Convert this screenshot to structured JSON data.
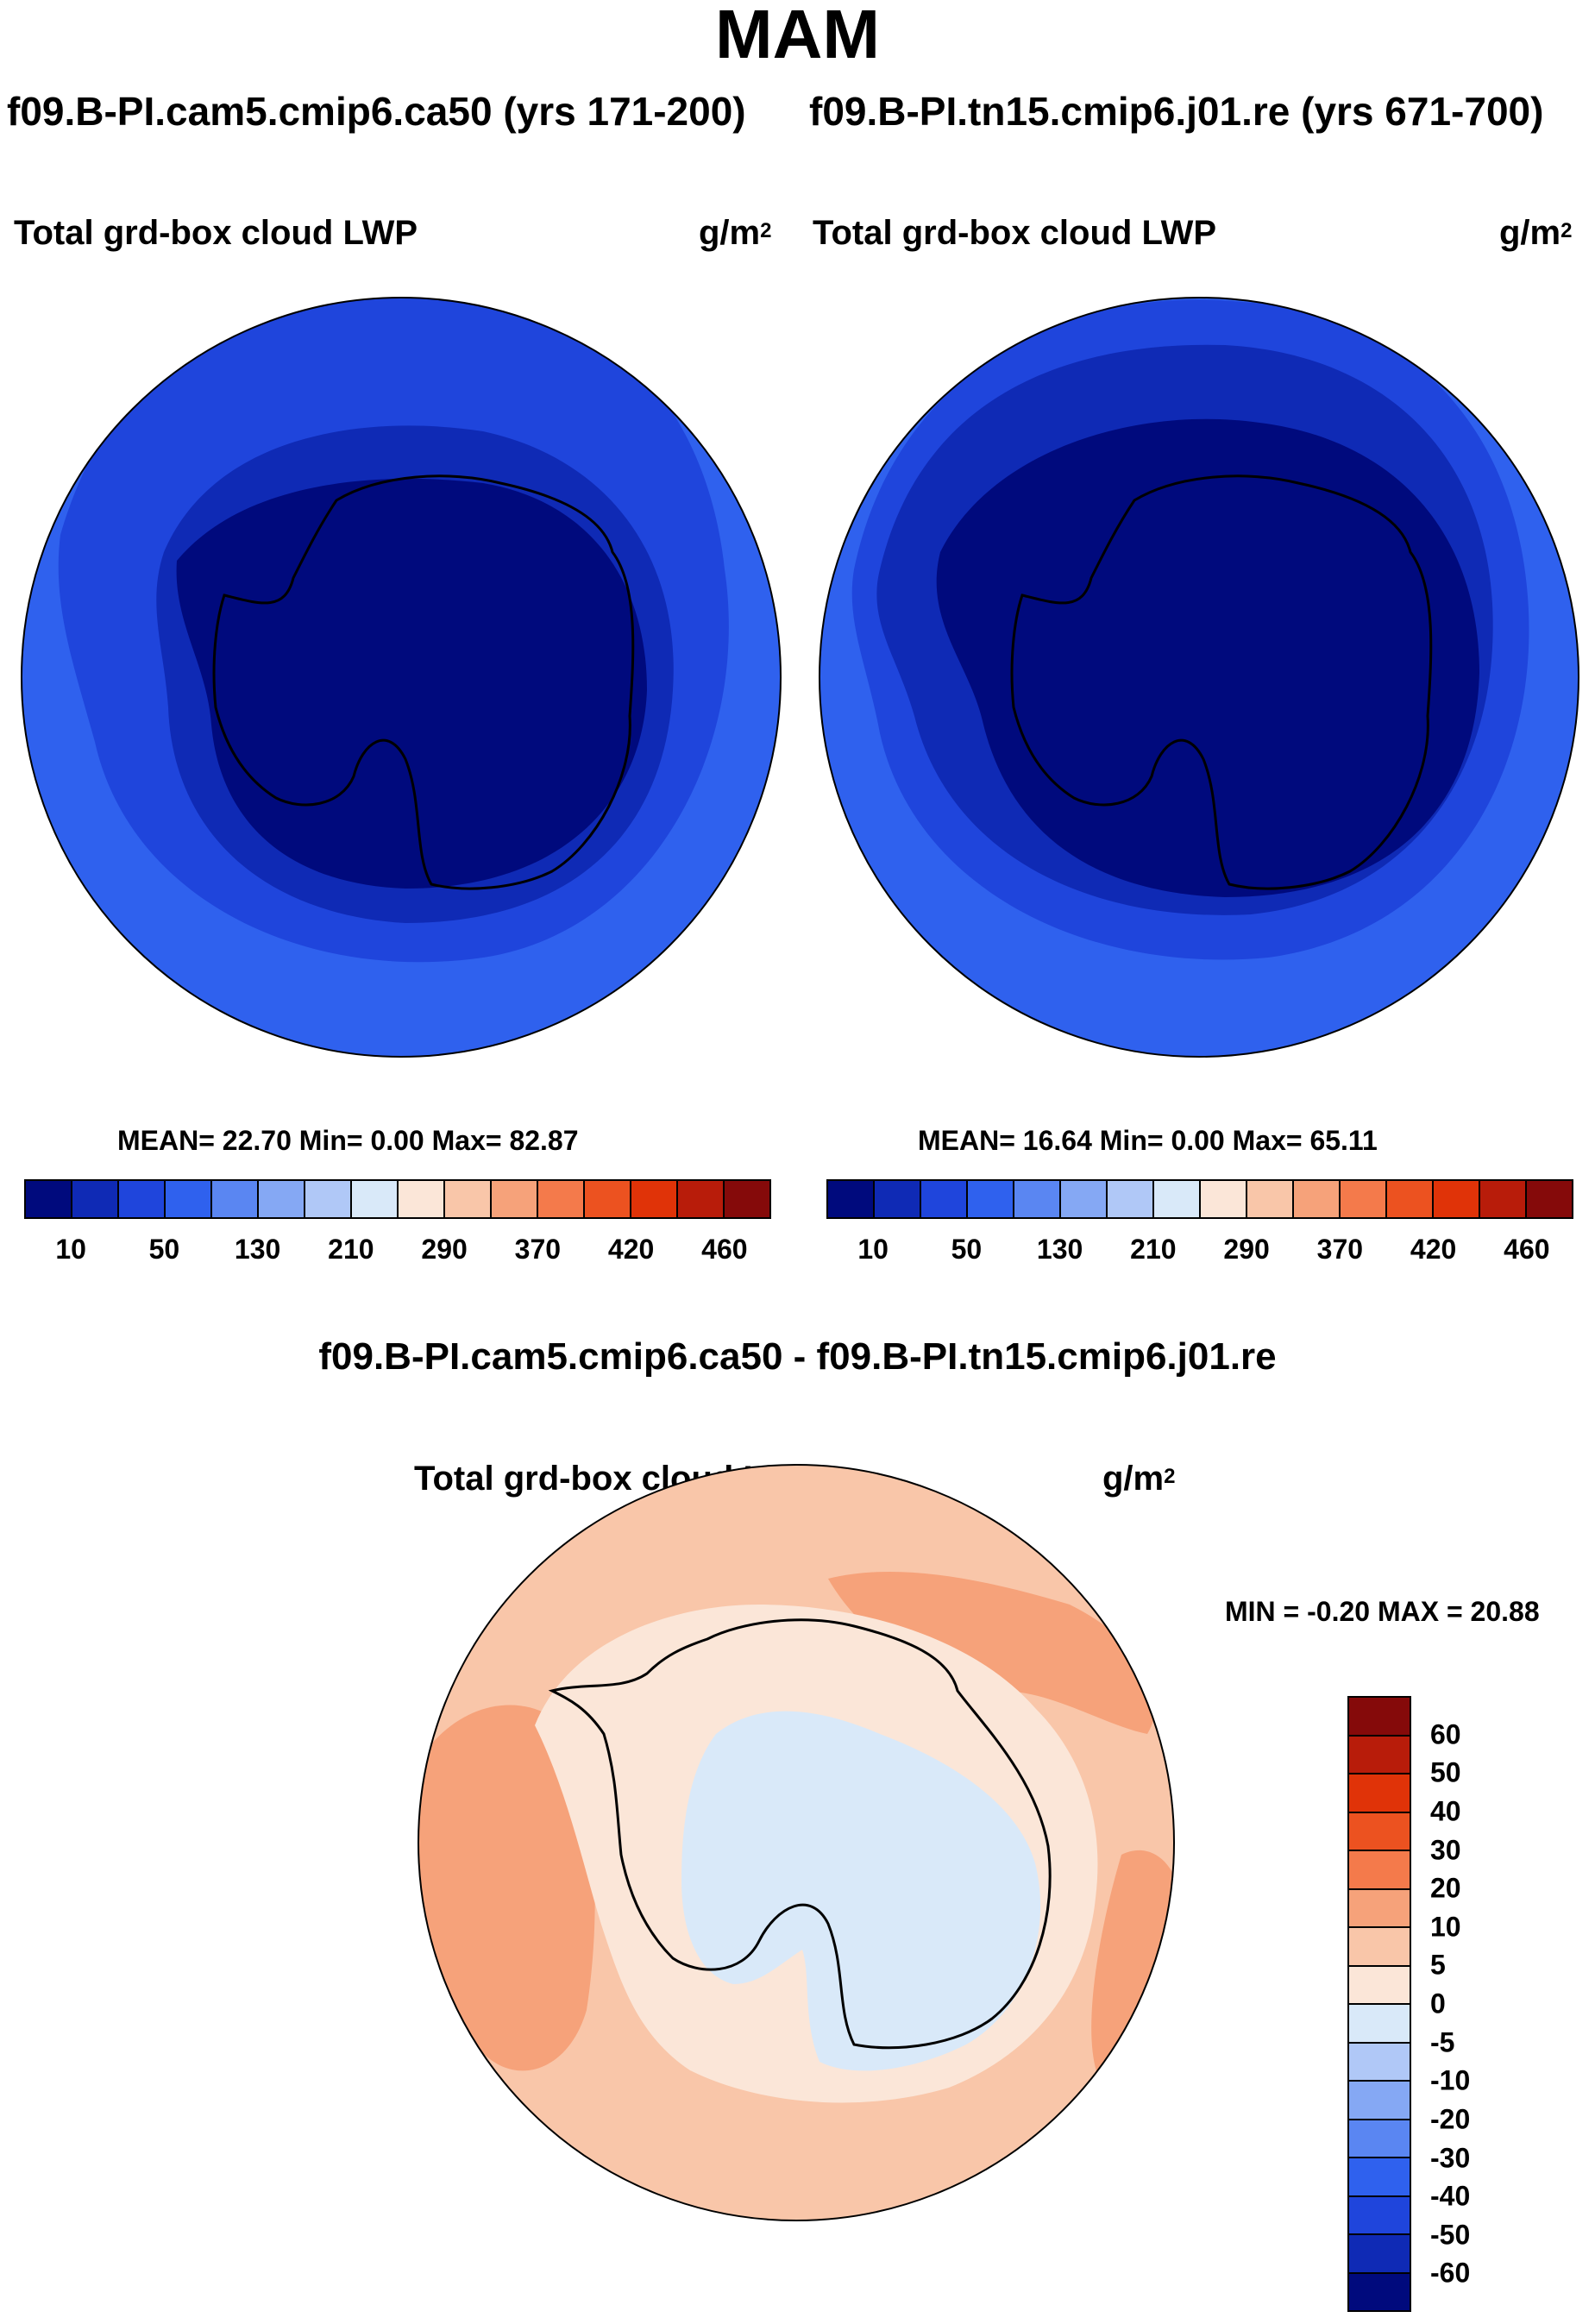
{
  "title": "MAM",
  "cases": {
    "left": "f09.B-PI.cam5.cmip6.ca50 (yrs 171-200)",
    "right": "f09.B-PI.tn15.cmip6.j01.re (yrs 671-700)"
  },
  "panels": [
    {
      "variable": "Total grd-box cloud LWP",
      "units_base": "g/m",
      "units_exp": "2",
      "stats": "MEAN=  22.70  Min=    0.00  Max=  82.87"
    },
    {
      "variable": "Total grd-box cloud LWP",
      "units_base": "g/m",
      "units_exp": "2",
      "stats": "MEAN=  16.64  Min=    0.00  Max=  65.11"
    }
  ],
  "colorbar": {
    "colors": [
      "#000a7d",
      "#0f2ab5",
      "#1f45dc",
      "#2f61ee",
      "#5a86f2",
      "#85a8f4",
      "#b0c8f7",
      "#d9e9f9",
      "#fbe6d8",
      "#f9c6a9",
      "#f6a27a",
      "#f47a4b",
      "#ec5220",
      "#e03308",
      "#b81c0a",
      "#850a0a"
    ],
    "ticks": [
      "10",
      "50",
      "130",
      "210",
      "290",
      "370",
      "420",
      "460"
    ]
  },
  "diff": {
    "title": "f09.B-PI.cam5.cmip6.ca50 - f09.B-PI.tn15.cmip6.j01.re",
    "variable": "Total grd-box cloud LWP",
    "units_base": "g/m",
    "units_exp": "2",
    "stats": "MIN =  -0.20 MAX =  20.88",
    "colors": [
      "#850a0a",
      "#b81c0a",
      "#e03308",
      "#ec5220",
      "#f47a4b",
      "#f6a27a",
      "#f9c6a9",
      "#fbe6d8",
      "#d9e9f9",
      "#b0c8f7",
      "#85a8f4",
      "#5a86f2",
      "#2f61ee",
      "#1f45dc",
      "#0f2ab5",
      "#000a7d"
    ],
    "ticks": [
      "60",
      "50",
      "40",
      "30",
      "20",
      "10",
      "5",
      "0",
      "-5",
      "-10",
      "-20",
      "-30",
      "-40",
      "-50",
      "-60"
    ]
  }
}
